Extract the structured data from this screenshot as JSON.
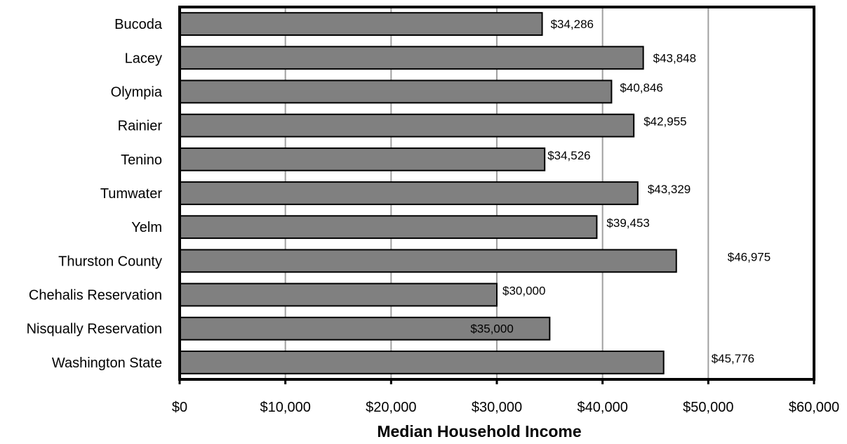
{
  "chart_data": {
    "type": "bar",
    "orientation": "horizontal",
    "title": "",
    "xlabel": "Median Household Income",
    "ylabel": "",
    "xlim": [
      0,
      60000
    ],
    "x_ticks": [
      0,
      10000,
      20000,
      30000,
      40000,
      50000,
      60000
    ],
    "x_tick_labels": [
      "$0",
      "$10,000",
      "$20,000",
      "$30,000",
      "$40,000",
      "$50,000",
      "$60,000"
    ],
    "grid": "vertical",
    "legend": "none",
    "bar_color": "#808080",
    "categories": [
      "Bucoda",
      "Lacey",
      "Olympia",
      "Rainier",
      "Tenino",
      "Tumwater",
      "Yelm",
      "Thurston County",
      "Chehalis Reservation",
      "Nisqually Reservation",
      "Washington State"
    ],
    "values": [
      34286,
      43848,
      40846,
      42955,
      34526,
      43329,
      39453,
      46975,
      30000,
      35000,
      45776
    ],
    "data_labels": [
      "$34,286",
      "$43,848",
      "$40,846",
      "$42,955",
      "$34,526",
      "$43,329",
      "$39,453",
      "$46,975",
      "$30,000",
      "$35,000",
      "$45,776"
    ]
  }
}
